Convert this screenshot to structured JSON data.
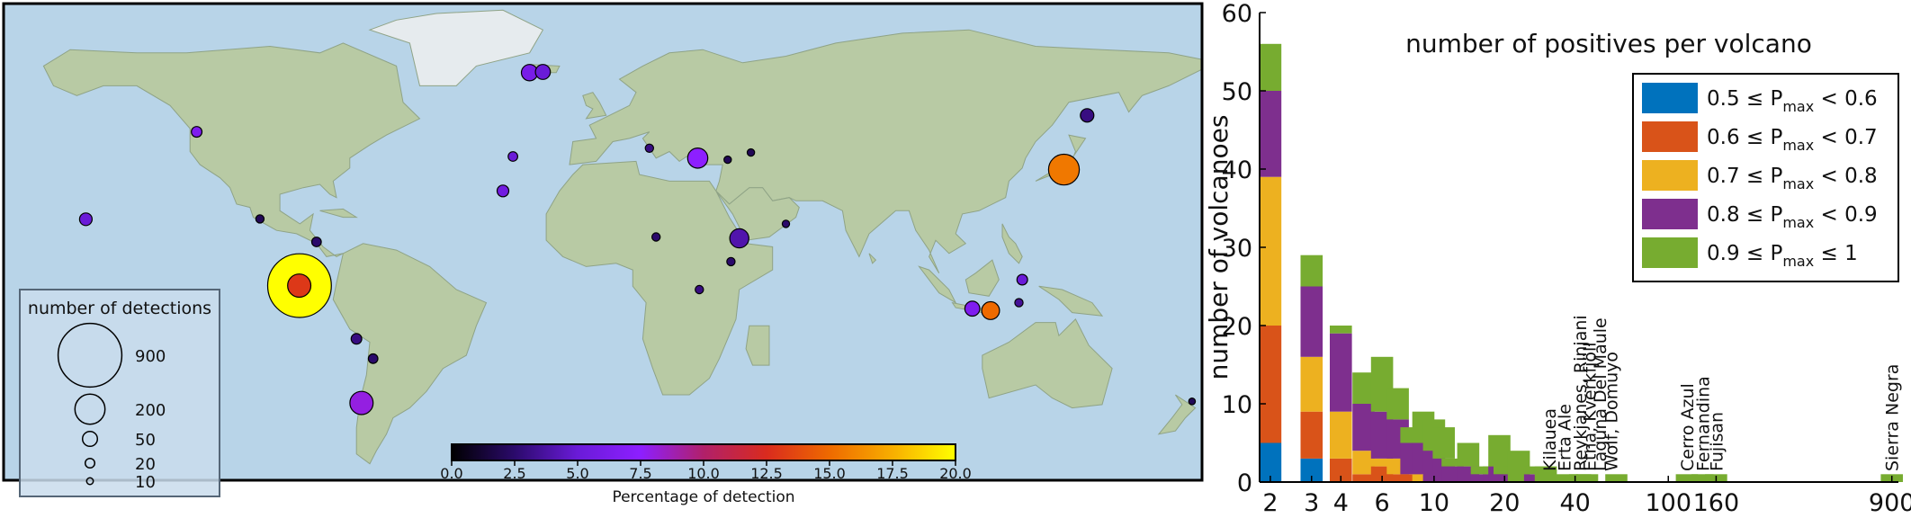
{
  "map": {
    "legend_title": "number of detections",
    "size_legend": [
      {
        "label": "900",
        "value": 900
      },
      {
        "label": "200",
        "value": 200
      },
      {
        "label": "50",
        "value": 50
      },
      {
        "label": "20",
        "value": 20
      },
      {
        "label": "10",
        "value": 10
      }
    ],
    "colorbar": {
      "label": "Percentage of detection",
      "ticks": [
        "0.0",
        "2.5",
        "5.0",
        "7.5",
        "10.0",
        "12.5",
        "15.0",
        "17.5",
        "20.0"
      ],
      "range": [
        0,
        20
      ],
      "colors": [
        "#000000",
        "#2b0a6b",
        "#6a1bd8",
        "#8d1fff",
        "#b1206a",
        "#d92b1e",
        "#ee6a00",
        "#f8ae00",
        "#ffff00"
      ]
    },
    "ocean_color": "#b8d4e8",
    "land_color": "#b8caa4",
    "volcanoes": [
      {
        "lon": -91.1,
        "lat": -0.8,
        "detections": 900,
        "pct": 20.0
      },
      {
        "lon": -91.2,
        "lat": -0.8,
        "detections": 120,
        "pct": 13.0
      },
      {
        "lon": 138.5,
        "lat": 34.5,
        "detections": 210,
        "pct": 15.5
      },
      {
        "lon": 28.5,
        "lat": 38.0,
        "detections": 90,
        "pct": 7.5
      },
      {
        "lon": -22.0,
        "lat": 64.0,
        "detections": 60,
        "pct": 6.0
      },
      {
        "lon": -18.0,
        "lat": 64.2,
        "detections": 50,
        "pct": 5.0
      },
      {
        "lon": -72.5,
        "lat": -36.5,
        "detections": 120,
        "pct": 8.0
      },
      {
        "lon": 116.5,
        "lat": -8.4,
        "detections": 70,
        "pct": 15.0
      },
      {
        "lon": 111.0,
        "lat": -7.8,
        "detections": 50,
        "pct": 6.5
      },
      {
        "lon": 41.0,
        "lat": 13.6,
        "detections": 80,
        "pct": 4.0
      },
      {
        "lon": -155.3,
        "lat": 19.4,
        "detections": 35,
        "pct": 5.0
      },
      {
        "lon": -122.0,
        "lat": 46.0,
        "detections": 25,
        "pct": 6.5
      },
      {
        "lon": -27.0,
        "lat": 38.5,
        "detections": 20,
        "pct": 5.0
      },
      {
        "lon": -30.0,
        "lat": 28.0,
        "detections": 30,
        "pct": 5.5
      },
      {
        "lon": 145.5,
        "lat": 51.0,
        "detections": 40,
        "pct": 3.0
      },
      {
        "lon": 126.0,
        "lat": 1.0,
        "detections": 25,
        "pct": 5.0
      },
      {
        "lon": 125.0,
        "lat": -6.0,
        "detections": 15,
        "pct": 3.5
      },
      {
        "lon": -74.0,
        "lat": -17.0,
        "detections": 25,
        "pct": 3.0
      },
      {
        "lon": 16.0,
        "lat": 14.0,
        "detections": 15,
        "pct": 2.5
      },
      {
        "lon": 55.0,
        "lat": 18.0,
        "detections": 12,
        "pct": 2.5
      },
      {
        "lon": 177.0,
        "lat": -36.0,
        "detections": 10,
        "pct": 2.0
      },
      {
        "lon": -103.0,
        "lat": 19.5,
        "detections": 15,
        "pct": 2.0
      },
      {
        "lon": -86.0,
        "lat": 12.5,
        "detections": 20,
        "pct": 2.5
      },
      {
        "lon": 37.5,
        "lat": 37.5,
        "detections": 12,
        "pct": 2.0
      },
      {
        "lon": 44.5,
        "lat": 39.7,
        "detections": 12,
        "pct": 2.0
      },
      {
        "lon": -69.0,
        "lat": -23.0,
        "detections": 20,
        "pct": 2.5
      },
      {
        "lon": 14.0,
        "lat": 41.0,
        "detections": 15,
        "pct": 3.0
      },
      {
        "lon": 38.5,
        "lat": 6.5,
        "detections": 15,
        "pct": 2.5
      },
      {
        "lon": 29.0,
        "lat": -2.0,
        "detections": 15,
        "pct": 3.0
      }
    ]
  },
  "chart_data": {
    "type": "bar",
    "stacked": true,
    "title": "number of positives per volcano",
    "xlabel": "",
    "ylabel": "number of volcanoes",
    "xscale": "log",
    "ylim": [
      0,
      60
    ],
    "yticks": [
      "0",
      "10",
      "20",
      "30",
      "40",
      "50",
      "60"
    ],
    "xticks": [
      {
        "label": "2",
        "value": 2
      },
      {
        "label": "3",
        "value": 3
      },
      {
        "label": "4",
        "value": 4
      },
      {
        "label": "6",
        "value": 6
      },
      {
        "label": "10",
        "value": 10
      },
      {
        "label": "20",
        "value": 20
      },
      {
        "label": "40",
        "value": 40
      },
      {
        "label": "100",
        "value": 100
      },
      {
        "label": "160",
        "value": 160
      },
      {
        "label": "900",
        "value": 900
      }
    ],
    "x": [
      2,
      3,
      4,
      5,
      6,
      7,
      8,
      9,
      10,
      11,
      12,
      14,
      16,
      18,
      19,
      20,
      22,
      23,
      27,
      30,
      37,
      42,
      45,
      60,
      120,
      140,
      160,
      900
    ],
    "series": [
      {
        "name": "0.5 ≤ P_max < 0.6",
        "color": "#0072bd",
        "values": [
          5,
          3,
          0,
          0,
          0,
          0,
          0,
          0,
          0,
          0,
          0,
          0,
          0,
          0,
          0,
          0,
          0,
          0,
          0,
          0,
          0,
          0,
          0,
          0,
          0,
          0,
          0,
          0
        ]
      },
      {
        "name": "0.6 ≤ P_max < 0.7",
        "color": "#d95319",
        "values": [
          15,
          6,
          3,
          1,
          2,
          1,
          1,
          0,
          0,
          0,
          0,
          0,
          0,
          0,
          0,
          0,
          0,
          0,
          0,
          0,
          0,
          0,
          0,
          0,
          0,
          0,
          0,
          0
        ]
      },
      {
        "name": "0.7 ≤ P_max < 0.8",
        "color": "#edb120",
        "values": [
          19,
          7,
          6,
          3,
          1,
          2,
          0,
          1,
          0,
          0,
          0,
          0,
          0,
          0,
          0,
          0,
          0,
          0,
          0,
          0,
          0,
          0,
          0,
          0,
          0,
          0,
          0,
          0
        ]
      },
      {
        "name": "0.8 ≤ P_max < 0.9",
        "color": "#7e2f8e",
        "values": [
          11,
          9,
          10,
          6,
          6,
          5,
          4,
          4,
          4,
          3,
          2,
          2,
          1,
          1,
          2,
          1,
          1,
          0,
          1,
          0,
          0,
          0,
          0,
          0,
          0,
          0,
          0,
          0
        ]
      },
      {
        "name": "0.9 ≤ P_max ≤ 1",
        "color": "#77ac30",
        "values": [
          6,
          4,
          1,
          4,
          7,
          4,
          2,
          4,
          4,
          4,
          1,
          3,
          1,
          1,
          4,
          2,
          1,
          4,
          1,
          2,
          1,
          1,
          1,
          1,
          1,
          1,
          1,
          1
        ]
      }
    ],
    "legend": {
      "placement": "top-right",
      "entries": [
        {
          "lhs": "0.5 ≤ P",
          "sub": "max",
          "rhs": " < 0.6"
        },
        {
          "lhs": "0.6 ≤ P",
          "sub": "max",
          "rhs": " < 0.7"
        },
        {
          "lhs": "0.7 ≤ P",
          "sub": "max",
          "rhs": " < 0.8"
        },
        {
          "lhs": "0.8 ≤ P",
          "sub": "max",
          "rhs": " < 0.9"
        },
        {
          "lhs": "0.9 ≤ P",
          "sub": "max",
          "rhs": " ≤ 1"
        }
      ]
    },
    "annotations": [
      {
        "text": "Kilauea",
        "x": 31
      },
      {
        "text": "Erta Ale",
        "x": 36
      },
      {
        "text": "Reykjanes, Rinjani",
        "x": 42
      },
      {
        "text": "Etna, Kverkfjöll",
        "x": 46
      },
      {
        "text": "Laguna Del Maule",
        "x": 51
      },
      {
        "text": "Wolf, Domuyo",
        "x": 57
      },
      {
        "text": "Cerro Azul",
        "x": 120
      },
      {
        "text": "Fernandina",
        "x": 140
      },
      {
        "text": "Fujisan",
        "x": 160
      },
      {
        "text": "Sierra Negra",
        "x": 900
      }
    ],
    "grid": false
  }
}
